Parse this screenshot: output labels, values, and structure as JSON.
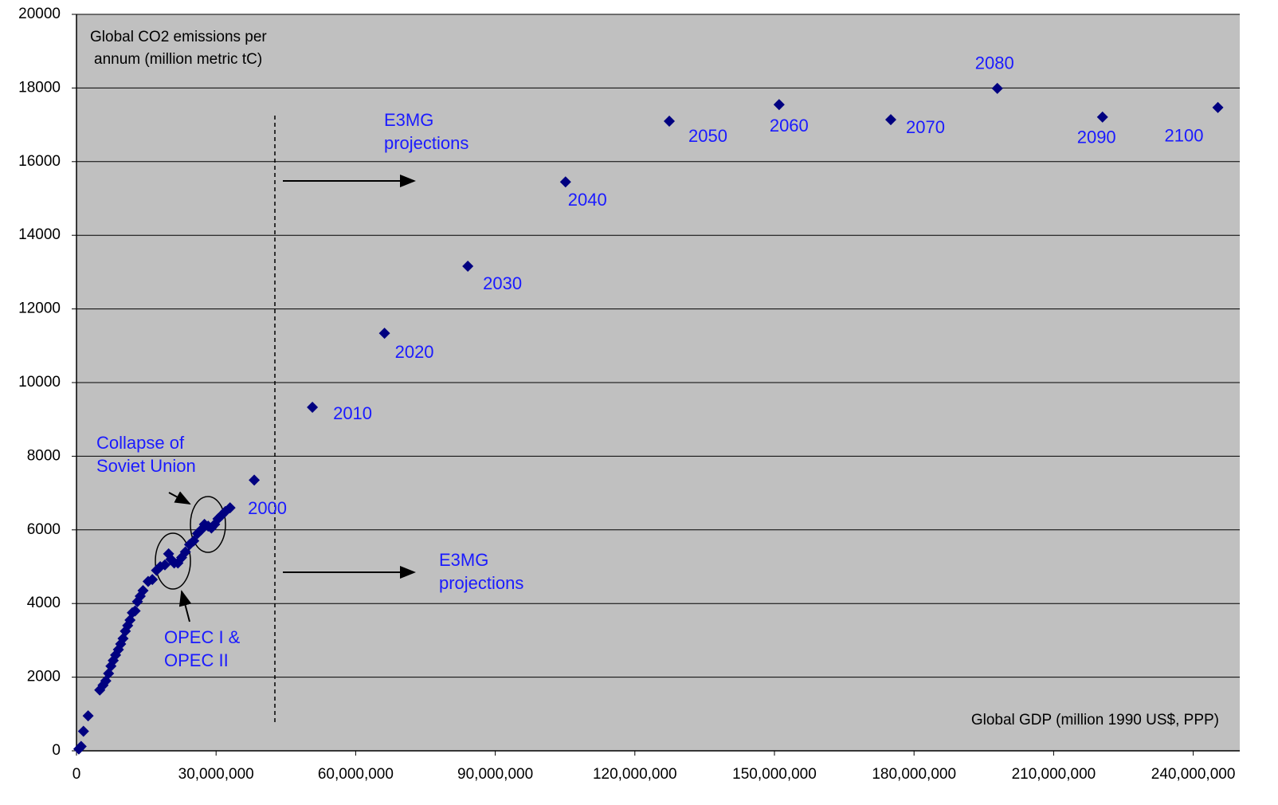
{
  "chart_data": {
    "type": "scatter",
    "y_title": [
      "Global CO2 emissions per",
      "annum (million metric tC)"
    ],
    "x_title": "Global GDP (million 1990 US$, PPP)",
    "annotations": {
      "soviet": [
        "Collapse of",
        "Soviet Union"
      ],
      "opec": [
        "OPEC I &",
        "OPEC II"
      ],
      "projections_top": [
        "E3MG",
        "projections"
      ],
      "projections_bottom": [
        "E3MG",
        "projections"
      ]
    },
    "xlim": [
      0,
      250000000
    ],
    "ylim": [
      0,
      20000
    ],
    "xticks": [
      0,
      {
        "value": 30000000,
        "label": "30,000,000"
      },
      {
        "value": 60000000,
        "label": "60,000,000"
      },
      {
        "value": 90000000,
        "label": "90,000,000"
      },
      {
        "value": 120000000,
        "label": "120,000,000"
      },
      {
        "value": 150000000,
        "label": "150,000,000"
      },
      {
        "value": 180000000,
        "label": "180,000,000"
      },
      {
        "value": 210000000,
        "label": "210,000,000"
      },
      {
        "value": 240000000,
        "label": "240,000,000"
      }
    ],
    "yticks": [
      0,
      2000,
      4000,
      6000,
      8000,
      10000,
      12000,
      14000,
      16000,
      18000,
      20000
    ],
    "grid": true,
    "background": "#c0c0c0",
    "series": [
      {
        "color": "#000080",
        "x": [
          500000,
          1000000,
          1500000,
          2500000,
          5000000,
          5700000,
          6300000,
          6900000,
          7400000,
          7900000,
          8400000,
          9000000,
          9500000,
          10000000,
          10500000,
          11000000,
          11500000,
          12000000,
          12600000,
          13100000,
          13700000,
          14300000,
          15400000,
          16300000,
          17200000,
          18000000,
          19000000,
          19800000,
          20300000,
          21000000,
          21800000,
          22600000,
          23400000,
          24300000,
          25200000,
          26000000,
          26800000,
          27500000,
          28300000,
          29000000,
          29700000,
          30400000,
          31200000,
          32000000,
          33000000
        ],
        "values": [
          50,
          120,
          530,
          950,
          1650,
          1780,
          1900,
          2100,
          2300,
          2450,
          2600,
          2750,
          2900,
          3050,
          3250,
          3400,
          3550,
          3750,
          3800,
          4050,
          4200,
          4350,
          4600,
          4650,
          4900,
          5000,
          5050,
          5350,
          5200,
          5100,
          5100,
          5250,
          5400,
          5600,
          5700,
          5900,
          6000,
          6150,
          6100,
          6050,
          6150,
          6300,
          6400,
          6500,
          6600
        ]
      },
      {
        "color": "#000080",
        "x": [
          38200000,
          50700000,
          66200000,
          84100000,
          105100000,
          127400000,
          151000000,
          175000000,
          197900000,
          220500000,
          245300000
        ],
        "values": [
          7350,
          9330,
          11340,
          13160,
          15450,
          17100,
          17550,
          17140,
          17990,
          17210,
          17470
        ],
        "labels": [
          "2000",
          "2010",
          "2020",
          "2030",
          "2040",
          "2050",
          "2060",
          "2070",
          "2080",
          "2090",
          "2100"
        ]
      }
    ]
  }
}
